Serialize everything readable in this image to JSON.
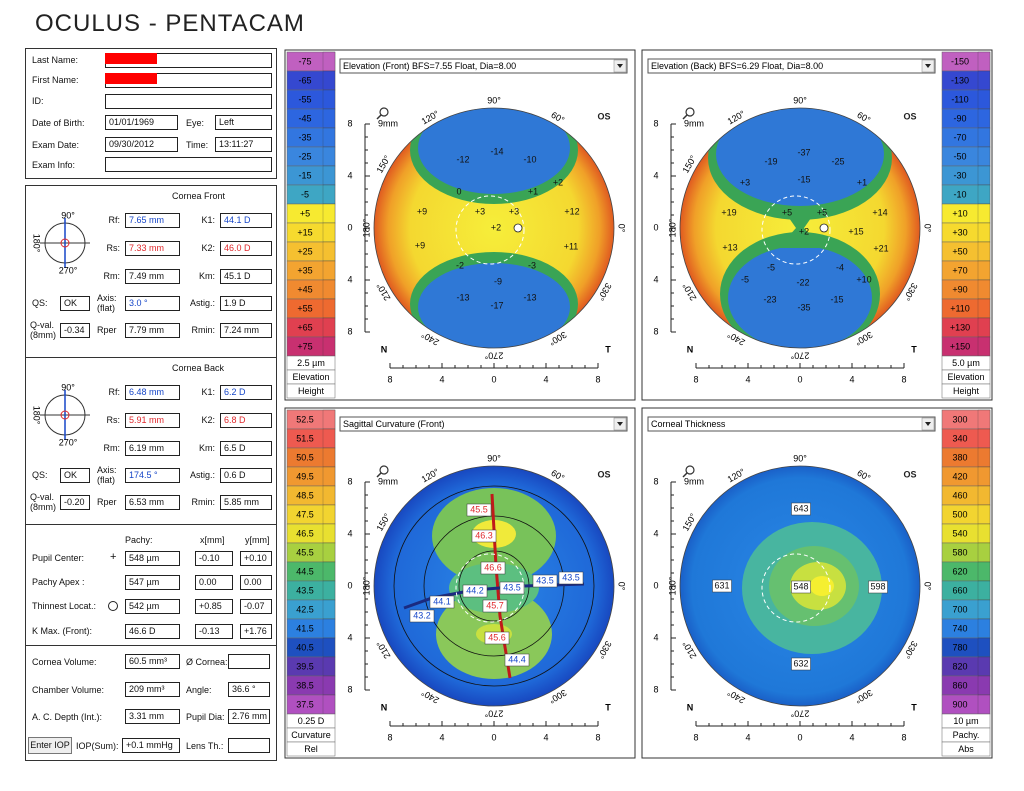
{
  "header": {
    "title": "OCULUS - PENTACAM"
  },
  "patient": {
    "last_name_label": "Last Name:",
    "first_name_label": "First Name:",
    "id_label": "ID:",
    "dob_label": "Date of Birth:",
    "dob": "01/01/1969",
    "eye_label": "Eye:",
    "eye": "Left",
    "exam_date_label": "Exam Date:",
    "exam_date": "09/30/2012",
    "time_label": "Time:",
    "time": "13:11:27",
    "exam_info_label": "Exam Info:"
  },
  "cornea_front": {
    "title": "Cornea Front",
    "diagram": [
      "90°",
      "180°",
      "270°"
    ],
    "rf_label": "Rf:",
    "rf": "7.65 mm",
    "k1_label": "K1:",
    "k1": "44.1 D",
    "rs_label": "Rs:",
    "rs": "7.33 mm",
    "k2_label": "K2:",
    "k2": "46.0 D",
    "rm_label": "Rm:",
    "rm": "7.49 mm",
    "km_label": "Km:",
    "km": "45.1 D",
    "qs_label": "QS:",
    "qs": "OK",
    "axis_label": "Axis:",
    "axis_sub": "(flat)",
    "axis": "3.0 °",
    "astig_label": "Astig.:",
    "astig": "1.9 D",
    "qval_label": "Q-val.",
    "qval_sub": "(8mm)",
    "qval": "-0.34",
    "rper_label": "Rper",
    "rper": "7.79 mm",
    "rmin_label": "Rmin:",
    "rmin": "7.24 mm"
  },
  "cornea_back": {
    "title": "Cornea Back",
    "diagram": [
      "90°",
      "180°",
      "270°"
    ],
    "rf_label": "Rf:",
    "rf": "6.48 mm",
    "k1_label": "K1:",
    "k1": "6.2 D",
    "rs_label": "Rs:",
    "rs": "5.91 mm",
    "k2_label": "K2:",
    "k2": "6.8 D",
    "rm_label": "Rm:",
    "rm": "6.19 mm",
    "km_label": "Km:",
    "km": "6.5 D",
    "qs_label": "QS:",
    "qs": "OK",
    "axis_label": "Axis:",
    "axis_sub": "(flat)",
    "axis": "174.5 °",
    "astig_label": "Astig.:",
    "astig": "0.6 D",
    "qval_label": "Q-val.",
    "qval_sub": "(8mm)",
    "qval": "-0.20",
    "rper_label": "Rper",
    "rper": "6.53 mm",
    "rmin_label": "Rmin:",
    "rmin": "5.85 mm"
  },
  "pachy": {
    "headers": [
      "Pachy:",
      "x[mm]",
      "y[mm]"
    ],
    "rows": [
      [
        "Pupil Center:",
        "548 µm",
        "-0.10",
        "+0.10"
      ],
      [
        "Pachy Apex :",
        "547 µm",
        "0.00",
        "0.00"
      ],
      [
        "Thinnest Locat.:",
        "542 µm",
        "+0.85",
        "-0.07"
      ],
      [
        "K Max. (Front):",
        "46.6 D",
        "-0.13",
        "+1.76"
      ]
    ]
  },
  "volumes": {
    "cornea_volume_label": "Cornea Volume:",
    "cornea_volume": "60.5 mm³",
    "cornea_dia_label": "Ø Cornea:",
    "chamber_volume_label": "Chamber Volume:",
    "chamber_volume": "209 mm³",
    "angle_label": "Angle:",
    "angle": "36.6 °",
    "ac_depth_label": "A. C. Depth (Int.):",
    "ac_depth": "3.31 mm",
    "pupil_dia_label": "Pupil Dia:",
    "pupil_dia": "2.76 mm",
    "enter_iop": "Enter IOP",
    "iop_label": "IOP(Sum):",
    "iop": "+0.1 mmHg",
    "lens_label": "Lens Th.:"
  },
  "maps": [
    {
      "title": "Elevation (Front)  BFS=7.55 Float, Dia=8.00",
      "scale": [
        "-75",
        "-65",
        "-55",
        "-45",
        "-35",
        "-25",
        "-15",
        "-5",
        "+5",
        "+15",
        "+25",
        "+35",
        "+45",
        "+55",
        "+65",
        "+75"
      ],
      "scale_footer": [
        "2.5 µm",
        "Elevation",
        "Height"
      ],
      "eye": "OS",
      "nasal": "N",
      "temporal": "T",
      "zoom": "9mm",
      "angles": [
        "90°",
        "120°",
        "60°",
        "150°",
        "180°",
        "0°",
        "210°",
        "330°",
        "240°",
        "300°",
        "270°"
      ],
      "ruler": [
        "8",
        "4",
        "0",
        "4",
        "8"
      ],
      "labels": [
        "-14",
        "-12",
        "-10",
        "+2",
        "0",
        "+1",
        "+9",
        "+3",
        "+3",
        "+12",
        "+2",
        "+9",
        "+11",
        "-2",
        "-3",
        "-9",
        "-13",
        "-13",
        "-17"
      ]
    },
    {
      "title": "Elevation (Back)  BFS=6.29 Float, Dia=8.00",
      "scale": [
        "-150",
        "-130",
        "-110",
        "-90",
        "-70",
        "-50",
        "-30",
        "-10",
        "+10",
        "+30",
        "+50",
        "+70",
        "+90",
        "+110",
        "+130",
        "+150"
      ],
      "scale_footer": [
        "5.0 µm",
        "Elevation",
        "Height"
      ],
      "eye": "OS",
      "nasal": "N",
      "temporal": "T",
      "zoom": "9mm",
      "angles": [
        "90°",
        "120°",
        "60°",
        "150°",
        "180°",
        "0°",
        "210°",
        "330°",
        "240°",
        "300°",
        "270°"
      ],
      "ruler": [
        "8",
        "4",
        "0",
        "4",
        "8"
      ],
      "labels": [
        "-37",
        "-19",
        "-25",
        "-15",
        "+3",
        "+1",
        "+19",
        "+5",
        "+5",
        "+14",
        "+2",
        "+15",
        "+13",
        "+21",
        "-5",
        "-4",
        "-5",
        "+10",
        "-22",
        "-23",
        "-15",
        "-35"
      ]
    },
    {
      "title": "Sagittal Curvature (Front)",
      "scale": [
        "52.5",
        "51.5",
        "50.5",
        "49.5",
        "48.5",
        "47.5",
        "46.5",
        "45.5",
        "44.5",
        "43.5",
        "42.5",
        "41.5",
        "40.5",
        "39.5",
        "38.5",
        "37.5"
      ],
      "scale_footer": [
        "0.25 D",
        "Curvature",
        "Rel"
      ],
      "eye": "OS",
      "nasal": "N",
      "temporal": "T",
      "zoom": "9mm",
      "angles": [
        "90°",
        "120°",
        "60°",
        "150°",
        "180°",
        "0°",
        "210°",
        "330°",
        "240°",
        "300°",
        "270°"
      ],
      "ruler": [
        "8",
        "4",
        "0",
        "4",
        "8"
      ],
      "labels": [
        "45.5",
        "46.3",
        "46.6",
        "43.5",
        "43.5",
        "44.2",
        "43.5",
        "44.1",
        "43.2",
        "45.7",
        "45.6",
        "44.4"
      ]
    },
    {
      "title": "Corneal Thickness",
      "scale": [
        "300",
        "340",
        "380",
        "420",
        "460",
        "500",
        "540",
        "580",
        "620",
        "660",
        "700",
        "740",
        "780",
        "820",
        "860",
        "900"
      ],
      "scale_footer": [
        "10 µm",
        "Pachy.",
        "Abs"
      ],
      "eye": "OS",
      "nasal": "N",
      "temporal": "T",
      "zoom": "9mm",
      "angles": [
        "90°",
        "120°",
        "60°",
        "150°",
        "180°",
        "0°",
        "210°",
        "330°",
        "240°",
        "300°",
        "270°"
      ],
      "ruler": [
        "8",
        "4",
        "0",
        "4",
        "8"
      ],
      "labels": [
        "643",
        "631",
        "548",
        "598",
        "632"
      ]
    }
  ]
}
